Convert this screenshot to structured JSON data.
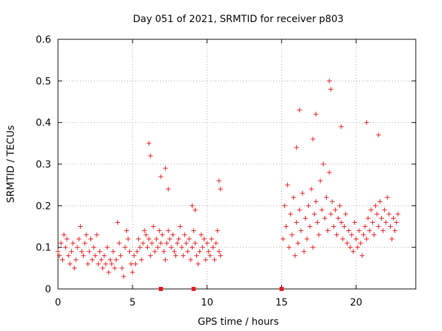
{
  "chart_data": {
    "type": "scatter",
    "title": "Day 051 of 2021, SRMTID for receiver p803",
    "xlabel": "GPS time / hours",
    "ylabel": "SRMTID / TECUs",
    "xlim": [
      0,
      24
    ],
    "ylim": [
      0,
      0.6
    ],
    "xticks": [
      0,
      5,
      10,
      15,
      20
    ],
    "yticks": [
      0,
      0.1,
      0.2,
      0.3,
      0.4,
      0.5,
      0.6
    ],
    "xtick_labels": [
      "0",
      "5",
      "10",
      "15",
      "20"
    ],
    "ytick_labels": [
      "0",
      "0.1",
      "0.2",
      "0.3",
      "0.4",
      "0.5",
      "0.6"
    ],
    "grid": true,
    "marker": "+",
    "color": "#e41a1c",
    "series": [
      {
        "name": "SRMTID",
        "x": [
          0.0,
          0.1,
          0.2,
          0.3,
          0.4,
          0.5,
          0.6,
          0.7,
          0.8,
          0.9,
          1.0,
          1.1,
          1.2,
          1.3,
          1.4,
          1.5,
          1.6,
          1.7,
          1.8,
          1.9,
          2.0,
          2.1,
          2.2,
          2.3,
          2.4,
          2.5,
          2.6,
          2.7,
          2.8,
          2.9,
          3.0,
          3.1,
          3.2,
          3.3,
          3.4,
          3.5,
          3.6,
          3.7,
          3.8,
          3.9,
          4.0,
          4.1,
          4.2,
          4.3,
          4.4,
          4.5,
          4.6,
          4.7,
          4.8,
          4.9,
          5.0,
          5.1,
          5.2,
          5.3,
          5.4,
          5.5,
          5.6,
          5.7,
          5.8,
          5.9,
          6.0,
          6.1,
          6.2,
          6.3,
          6.4,
          6.5,
          6.6,
          6.7,
          6.8,
          6.9,
          7.0,
          7.1,
          7.2,
          7.3,
          7.4,
          7.5,
          7.6,
          7.7,
          7.8,
          7.9,
          8.0,
          8.1,
          8.2,
          8.3,
          8.4,
          8.5,
          8.6,
          8.7,
          8.8,
          8.9,
          9.0,
          9.1,
          9.2,
          9.3,
          9.4,
          9.5,
          9.6,
          9.7,
          9.8,
          9.9,
          10.0,
          10.1,
          10.2,
          10.3,
          10.4,
          10.5,
          10.6,
          10.7,
          10.8,
          10.9,
          15.1,
          15.2,
          15.3,
          15.4,
          15.5,
          15.6,
          15.7,
          15.8,
          15.9,
          16.0,
          16.1,
          16.2,
          16.3,
          16.4,
          16.5,
          16.6,
          16.7,
          16.8,
          16.9,
          17.0,
          17.1,
          17.2,
          17.3,
          17.4,
          17.5,
          17.6,
          17.7,
          17.8,
          17.9,
          18.0,
          18.1,
          18.2,
          18.3,
          18.4,
          18.5,
          18.6,
          18.7,
          18.8,
          18.9,
          19.0,
          19.1,
          19.2,
          19.3,
          19.4,
          19.5,
          19.6,
          19.7,
          19.8,
          19.9,
          20.0,
          20.1,
          20.2,
          20.3,
          20.4,
          20.5,
          20.6,
          20.7,
          20.8,
          20.9,
          21.0,
          21.1,
          21.2,
          21.3,
          21.4,
          21.5,
          21.6,
          21.7,
          21.8,
          21.9,
          22.0,
          22.1,
          22.2,
          22.3,
          22.4,
          22.5,
          22.6,
          22.7,
          22.8,
          6.1,
          6.2,
          6.9,
          7.2,
          7.4,
          9.0,
          9.2,
          10.8,
          10.9,
          18.2,
          18.3,
          16.2,
          17.3,
          20.7,
          16.0,
          17.1,
          19.0,
          21.5
        ],
        "y": [
          0.09,
          0.08,
          0.11,
          0.07,
          0.13,
          0.1,
          0.12,
          0.08,
          0.06,
          0.09,
          0.11,
          0.05,
          0.07,
          0.1,
          0.12,
          0.15,
          0.09,
          0.08,
          0.11,
          0.13,
          0.06,
          0.09,
          0.12,
          0.07,
          0.1,
          0.08,
          0.13,
          0.06,
          0.09,
          0.07,
          0.05,
          0.08,
          0.06,
          0.1,
          0.04,
          0.07,
          0.06,
          0.09,
          0.05,
          0.07,
          0.16,
          0.11,
          0.08,
          0.05,
          0.03,
          0.1,
          0.14,
          0.12,
          0.09,
          0.06,
          0.04,
          0.08,
          0.06,
          0.09,
          0.12,
          0.1,
          0.07,
          0.11,
          0.14,
          0.13,
          0.1,
          0.12,
          0.08,
          0.11,
          0.15,
          0.09,
          0.12,
          0.1,
          0.14,
          0.11,
          0.13,
          0.09,
          0.07,
          0.11,
          0.14,
          0.12,
          0.1,
          0.13,
          0.09,
          0.08,
          0.11,
          0.12,
          0.15,
          0.1,
          0.08,
          0.13,
          0.11,
          0.09,
          0.12,
          0.07,
          0.1,
          0.14,
          0.11,
          0.08,
          0.06,
          0.09,
          0.13,
          0.1,
          0.12,
          0.07,
          0.11,
          0.09,
          0.08,
          0.12,
          0.1,
          0.07,
          0.11,
          0.14,
          0.09,
          0.08,
          0.12,
          0.2,
          0.15,
          0.25,
          0.1,
          0.18,
          0.13,
          0.22,
          0.08,
          0.16,
          0.11,
          0.19,
          0.14,
          0.23,
          0.09,
          0.17,
          0.12,
          0.2,
          0.15,
          0.24,
          0.1,
          0.18,
          0.21,
          0.16,
          0.13,
          0.26,
          0.19,
          0.3,
          0.17,
          0.22,
          0.14,
          0.28,
          0.18,
          0.21,
          0.15,
          0.19,
          0.13,
          0.17,
          0.2,
          0.16,
          0.12,
          0.15,
          0.18,
          0.11,
          0.14,
          0.1,
          0.13,
          0.09,
          0.16,
          0.12,
          0.1,
          0.14,
          0.11,
          0.08,
          0.13,
          0.15,
          0.12,
          0.17,
          0.14,
          0.19,
          0.16,
          0.13,
          0.2,
          0.18,
          0.15,
          0.21,
          0.17,
          0.14,
          0.19,
          0.16,
          0.22,
          0.18,
          0.15,
          0.12,
          0.17,
          0.14,
          0.16,
          0.18,
          0.35,
          0.32,
          0.27,
          0.29,
          0.24,
          0.2,
          0.19,
          0.26,
          0.24,
          0.5,
          0.48,
          0.43,
          0.42,
          0.4,
          0.34,
          0.36,
          0.39,
          0.37
        ]
      }
    ],
    "markers_at_zero": [
      6.9,
      9.1,
      15.0
    ]
  }
}
